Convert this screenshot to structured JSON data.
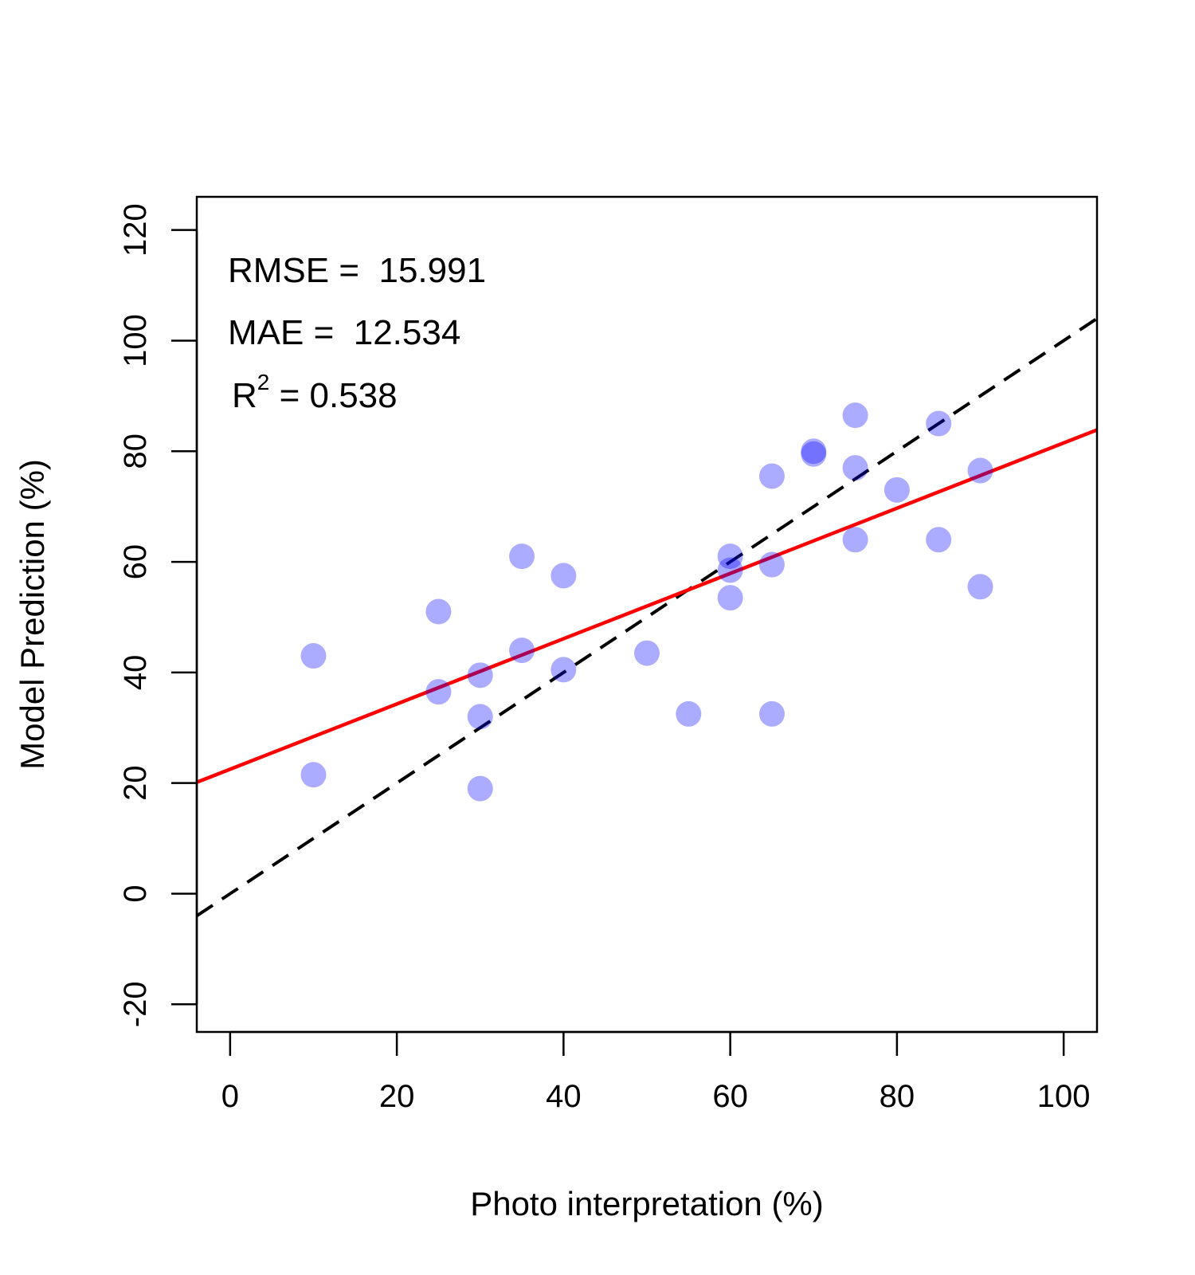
{
  "chart_data": {
    "type": "scatter",
    "title": "",
    "xlabel": "Photo interpretation (%)",
    "ylabel": "Model Prediction (%)",
    "xlim": [
      -4,
      104
    ],
    "ylim": [
      -25,
      126
    ],
    "xticks": [
      0,
      20,
      40,
      60,
      80,
      100
    ],
    "yticks": [
      -20,
      0,
      20,
      40,
      60,
      80,
      100,
      120
    ],
    "xtick_labels": [
      "0",
      "20",
      "40",
      "60",
      "80",
      "100"
    ],
    "ytick_labels": [
      "-20",
      "0",
      "20",
      "40",
      "60",
      "80",
      "100",
      "120"
    ],
    "grid": false,
    "point_color": "#aaaaff",
    "points": [
      {
        "x": 10,
        "y": 43
      },
      {
        "x": 10,
        "y": 21.5
      },
      {
        "x": 25,
        "y": 51
      },
      {
        "x": 25,
        "y": 36.5
      },
      {
        "x": 30,
        "y": 39.5
      },
      {
        "x": 30,
        "y": 32
      },
      {
        "x": 30,
        "y": 19
      },
      {
        "x": 35,
        "y": 61
      },
      {
        "x": 35,
        "y": 44
      },
      {
        "x": 40,
        "y": 57.5
      },
      {
        "x": 40,
        "y": 40.5
      },
      {
        "x": 50,
        "y": 43.5
      },
      {
        "x": 55,
        "y": 32.5
      },
      {
        "x": 60,
        "y": 61
      },
      {
        "x": 60,
        "y": 58.5
      },
      {
        "x": 60,
        "y": 53.5
      },
      {
        "x": 65,
        "y": 75.5
      },
      {
        "x": 65,
        "y": 59.5
      },
      {
        "x": 65,
        "y": 32.5
      },
      {
        "x": 70,
        "y": 80
      },
      {
        "x": 70,
        "y": 79.5
      },
      {
        "x": 75,
        "y": 86.5
      },
      {
        "x": 75,
        "y": 77
      },
      {
        "x": 75,
        "y": 64
      },
      {
        "x": 80,
        "y": 73
      },
      {
        "x": 85,
        "y": 85
      },
      {
        "x": 85,
        "y": 64
      },
      {
        "x": 90,
        "y": 76.5
      },
      {
        "x": 90,
        "y": 55.5
      }
    ],
    "lines": [
      {
        "kind": "one-to-one",
        "color": "#000000",
        "style": "dashed",
        "intercept": 0,
        "slope": 1
      },
      {
        "kind": "regression",
        "color": "#ff0000",
        "style": "solid",
        "intercept": 22.5,
        "slope": 0.59
      }
    ]
  },
  "stats": {
    "rmse": "RMSE =  15.991",
    "mae": "MAE =  12.534",
    "r2_prefix": "R",
    "r2_exponent": "2",
    "r2_value": " = 0.538"
  }
}
